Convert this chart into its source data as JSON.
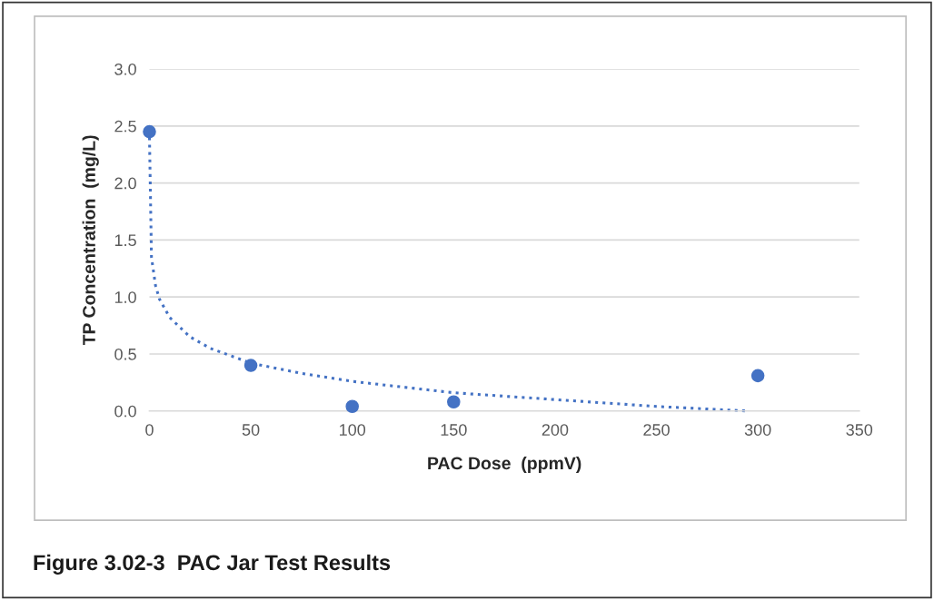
{
  "chart_data": {
    "type": "scatter",
    "title": "Figure 3.02-3  PAC Jar Test Results",
    "xlabel": "PAC Dose  (ppmV)",
    "ylabel": "TP Concentration  (mg/L)",
    "series": [
      {
        "color": "#4472c4",
        "marker": "circle",
        "x": [
          0,
          50,
          100,
          150,
          300
        ],
        "values": [
          2.45,
          0.4,
          0.04,
          0.08,
          0.31
        ]
      },
      {
        "type": "line",
        "color": "#4472c4",
        "marker": "none",
        "line_style": "dotted",
        "x": [
          0.02,
          1,
          3,
          5,
          10,
          20,
          30,
          50,
          75,
          100,
          150,
          200,
          250,
          295
        ],
        "values": [
          2.4,
          1.35,
          1.1,
          0.98,
          0.82,
          0.65,
          0.55,
          0.42,
          0.33,
          0.26,
          0.16,
          0.1,
          0.04,
          0.0
        ]
      }
    ],
    "xlim": [
      0,
      350
    ],
    "xticks": [
      0,
      50,
      100,
      150,
      200,
      250,
      300,
      350
    ],
    "ylim": [
      0,
      3
    ],
    "yticks": [
      {
        "value": 0,
        "label": "0.0"
      },
      {
        "value": 0.5,
        "label": "0.5"
      },
      {
        "value": 1,
        "label": "1.0"
      },
      {
        "value": 1.5,
        "label": "1.5"
      },
      {
        "value": 2,
        "label": "2.0"
      },
      {
        "value": 2.5,
        "label": "2.5"
      },
      {
        "value": 3,
        "label": "3.0"
      }
    ],
    "grid": "y"
  }
}
